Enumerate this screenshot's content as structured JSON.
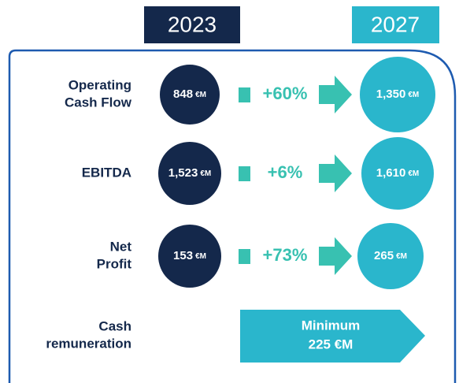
{
  "header": {
    "from_year": "2023",
    "to_year": "2027"
  },
  "rows": [
    {
      "label": [
        "Operating",
        "Cash Flow"
      ],
      "from": {
        "amount": "848",
        "unit": "€M"
      },
      "growth": "+60%",
      "to": {
        "amount": "1,350",
        "unit": "€M"
      }
    },
    {
      "label": [
        "EBITDA"
      ],
      "from": {
        "amount": "1,523",
        "unit": "€M"
      },
      "growth": "+6%",
      "to": {
        "amount": "1,610",
        "unit": "€M"
      }
    },
    {
      "label": [
        "Net",
        "Profit"
      ],
      "from": {
        "amount": "153",
        "unit": "€M"
      },
      "growth": "+73%",
      "to": {
        "amount": "265",
        "unit": "€M"
      }
    }
  ],
  "remuneration": {
    "label": [
      "Cash",
      "remuneration"
    ],
    "value": [
      "Minimum",
      "225 €M"
    ]
  }
}
